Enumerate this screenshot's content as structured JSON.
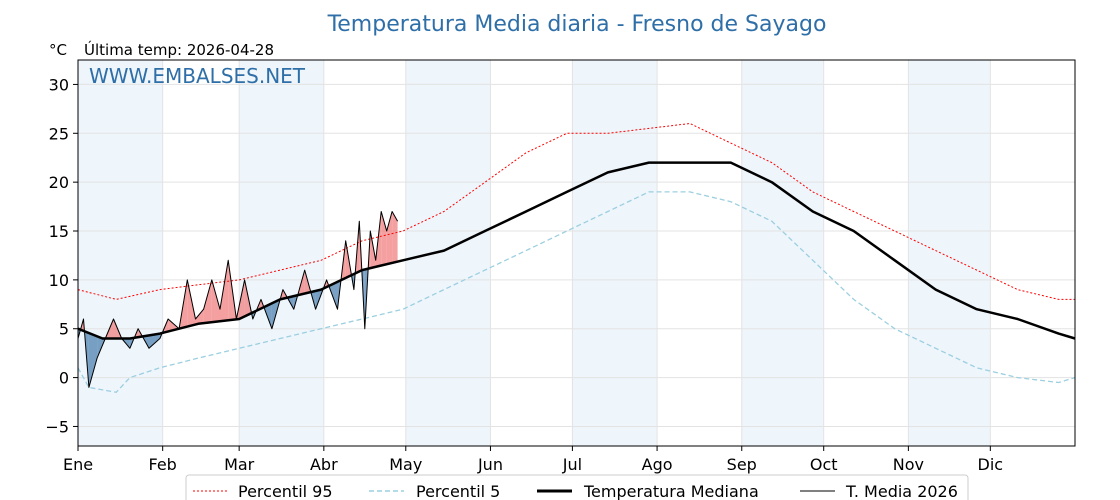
{
  "chart_data": {
    "type": "line",
    "title": "Temperatura Media diaria - Fresno de Sayago",
    "unit_label": "°C",
    "last_temp": "Última temp: 2026-04-28",
    "watermark": "WWW.EMBALSES.NET",
    "ylim": [
      -7,
      32.5
    ],
    "yticks": [
      30,
      25,
      20,
      15,
      10,
      5,
      0,
      -5
    ],
    "xlim": [
      1,
      366
    ],
    "month_ticks": [
      {
        "label": "Ene",
        "day": 1
      },
      {
        "label": "Feb",
        "day": 32
      },
      {
        "label": "Mar",
        "day": 60
      },
      {
        "label": "Abr",
        "day": 91
      },
      {
        "label": "May",
        "day": 121
      },
      {
        "label": "Jun",
        "day": 152
      },
      {
        "label": "Jul",
        "day": 182
      },
      {
        "label": "Ago",
        "day": 213
      },
      {
        "label": "Sep",
        "day": 244
      },
      {
        "label": "Oct",
        "day": 274
      },
      {
        "label": "Nov",
        "day": 305
      },
      {
        "label": "Dic",
        "day": 335
      }
    ],
    "shaded_months": [
      [
        1,
        32
      ],
      [
        60,
        91
      ],
      [
        121,
        152
      ],
      [
        182,
        213
      ],
      [
        244,
        274
      ],
      [
        305,
        335
      ]
    ],
    "grid": true,
    "legend": {
      "placement": "bottom-center",
      "entries": [
        "Percentil 95",
        "Percentil 5",
        "Temperatura Mediana",
        "T. Media 2026"
      ]
    },
    "colors": {
      "p95": "#ff0000",
      "p5": "#9ccfe0",
      "median": "#000000",
      "current": "#000000",
      "above_fill": "#f08080",
      "below_fill": "#4f81b0",
      "shade": "#eef5fb"
    },
    "series": [
      {
        "name": "Percentil 95",
        "x": [
          1,
          15,
          31,
          45,
          60,
          75,
          90,
          105,
          120,
          135,
          150,
          165,
          180,
          195,
          210,
          225,
          240,
          255,
          270,
          285,
          300,
          315,
          330,
          345,
          360,
          366
        ],
        "values": [
          9,
          8,
          9,
          9.5,
          10,
          11,
          12,
          14,
          15,
          17,
          20,
          23,
          25,
          25,
          25.5,
          26,
          24,
          22,
          19,
          17,
          15,
          13,
          11,
          9,
          8,
          8
        ]
      },
      {
        "name": "Percentil 5",
        "x": [
          1,
          5,
          15,
          20,
          31,
          45,
          60,
          75,
          90,
          105,
          120,
          135,
          150,
          165,
          180,
          195,
          210,
          225,
          240,
          255,
          270,
          285,
          300,
          315,
          330,
          345,
          360,
          366
        ],
        "values": [
          1,
          -1,
          -1.5,
          0,
          1,
          2,
          3,
          4,
          5,
          6,
          7,
          9,
          11,
          13,
          15,
          17,
          19,
          19,
          18,
          16,
          12,
          8,
          5,
          3,
          1,
          0,
          -0.5,
          0
        ]
      },
      {
        "name": "Temperatura Mediana",
        "x": [
          1,
          10,
          20,
          31,
          45,
          60,
          75,
          90,
          105,
          120,
          135,
          150,
          165,
          180,
          195,
          210,
          225,
          240,
          255,
          270,
          285,
          300,
          315,
          330,
          345,
          360,
          366
        ],
        "values": [
          5,
          4,
          4,
          4.5,
          5.5,
          6,
          8,
          9,
          11,
          12,
          13,
          15,
          17,
          19,
          21,
          22,
          22,
          22,
          20,
          17,
          15,
          12,
          9,
          7,
          6,
          4.5,
          4
        ]
      },
      {
        "name": "T. Media 2026",
        "x": [
          1,
          3,
          5,
          8,
          11,
          14,
          17,
          20,
          23,
          27,
          31,
          34,
          38,
          41,
          44,
          47,
          50,
          53,
          56,
          59,
          62,
          65,
          68,
          72,
          76,
          80,
          84,
          88,
          92,
          96,
          99,
          102,
          104,
          106,
          108,
          110,
          112,
          114,
          116,
          118
        ],
        "values": [
          4,
          6,
          -1,
          2,
          4,
          6,
          4,
          3,
          5,
          3,
          4,
          6,
          5,
          10,
          6,
          7,
          10,
          7,
          12,
          6,
          10,
          6,
          8,
          5,
          9,
          7,
          11,
          7,
          10,
          7,
          14,
          9,
          16,
          5,
          15,
          12,
          17,
          15,
          17,
          16
        ]
      }
    ]
  }
}
